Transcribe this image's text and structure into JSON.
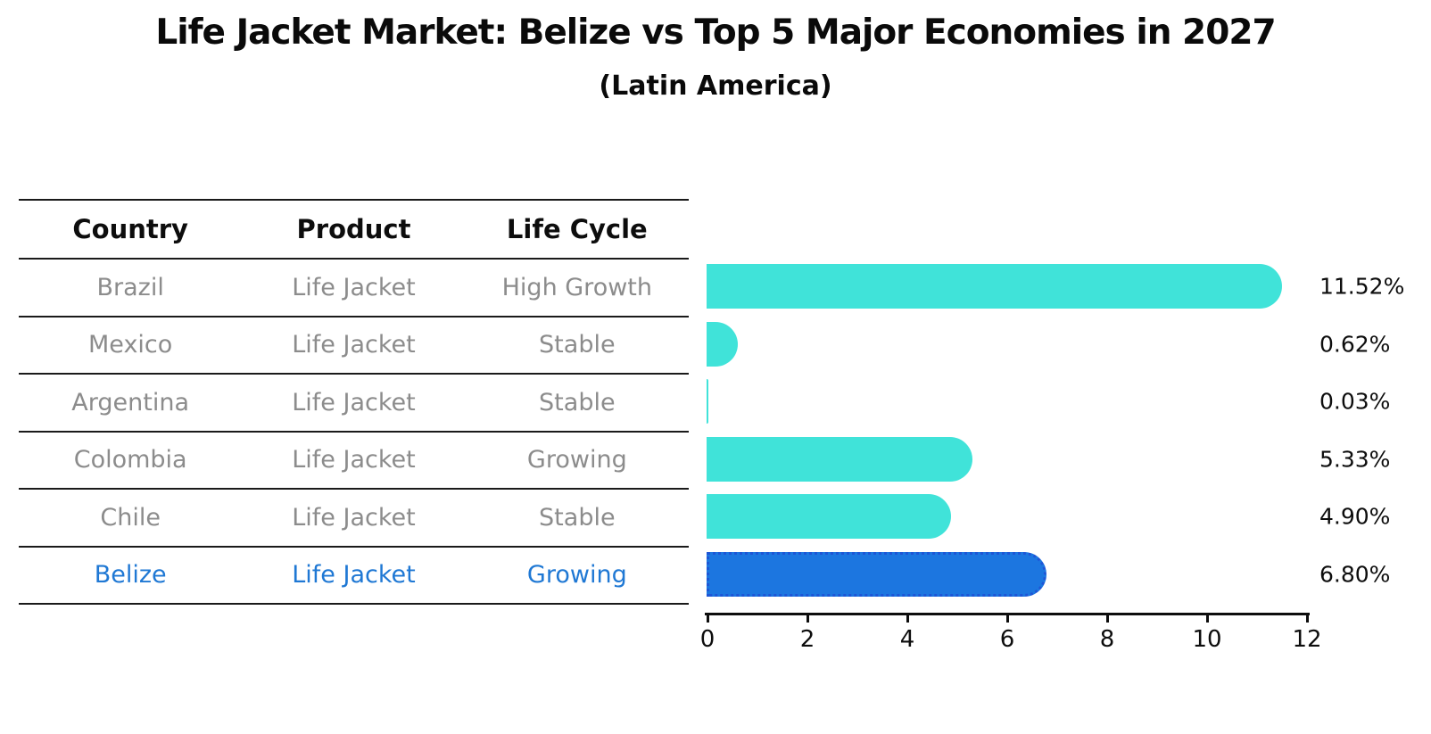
{
  "title": "Life Jacket Market: Belize vs Top 5 Major Economies in 2027",
  "subtitle": "(Latin America)",
  "table": {
    "headers": [
      "Country",
      "Product",
      "Life Cycle"
    ],
    "rows": [
      {
        "country": "Brazil",
        "product": "Life Jacket",
        "life_cycle": "High Growth",
        "highlight": false
      },
      {
        "country": "Mexico",
        "product": "Life Jacket",
        "life_cycle": "Stable",
        "highlight": false
      },
      {
        "country": "Argentina",
        "product": "Life Jacket",
        "life_cycle": "Stable",
        "highlight": false
      },
      {
        "country": "Colombia",
        "product": "Life Jacket",
        "life_cycle": "Growing",
        "highlight": false
      },
      {
        "country": "Chile",
        "product": "Life Jacket",
        "life_cycle": "Stable",
        "highlight": false
      },
      {
        "country": "Belize",
        "product": "Life Jacket",
        "life_cycle": "Growing",
        "highlight": true
      }
    ]
  },
  "chart_data": {
    "type": "bar",
    "orientation": "horizontal",
    "title": "Life Jacket Market: Belize vs Top 5 Major Economies in 2027",
    "subtitle": "(Latin America)",
    "categories": [
      "Brazil",
      "Mexico",
      "Argentina",
      "Colombia",
      "Chile",
      "Belize"
    ],
    "values": [
      11.52,
      0.62,
      0.03,
      5.33,
      4.9,
      6.8
    ],
    "value_labels": [
      "11.52%",
      "0.62%",
      "0.03%",
      "5.33%",
      "4.90%",
      "6.80%"
    ],
    "xlim": [
      0,
      12
    ],
    "x_ticks": [
      0,
      2,
      4,
      6,
      8,
      10,
      12
    ],
    "highlight_index": 5,
    "grid": false,
    "legend": "none"
  },
  "colors": {
    "bar": "#40E3D9",
    "highlight_bar": "#1C76E0",
    "highlight_bar_border": "#1E56D6",
    "highlight_text": "#1F78D4",
    "row_text": "#8C8C8C",
    "line": "#1A1A1A"
  }
}
